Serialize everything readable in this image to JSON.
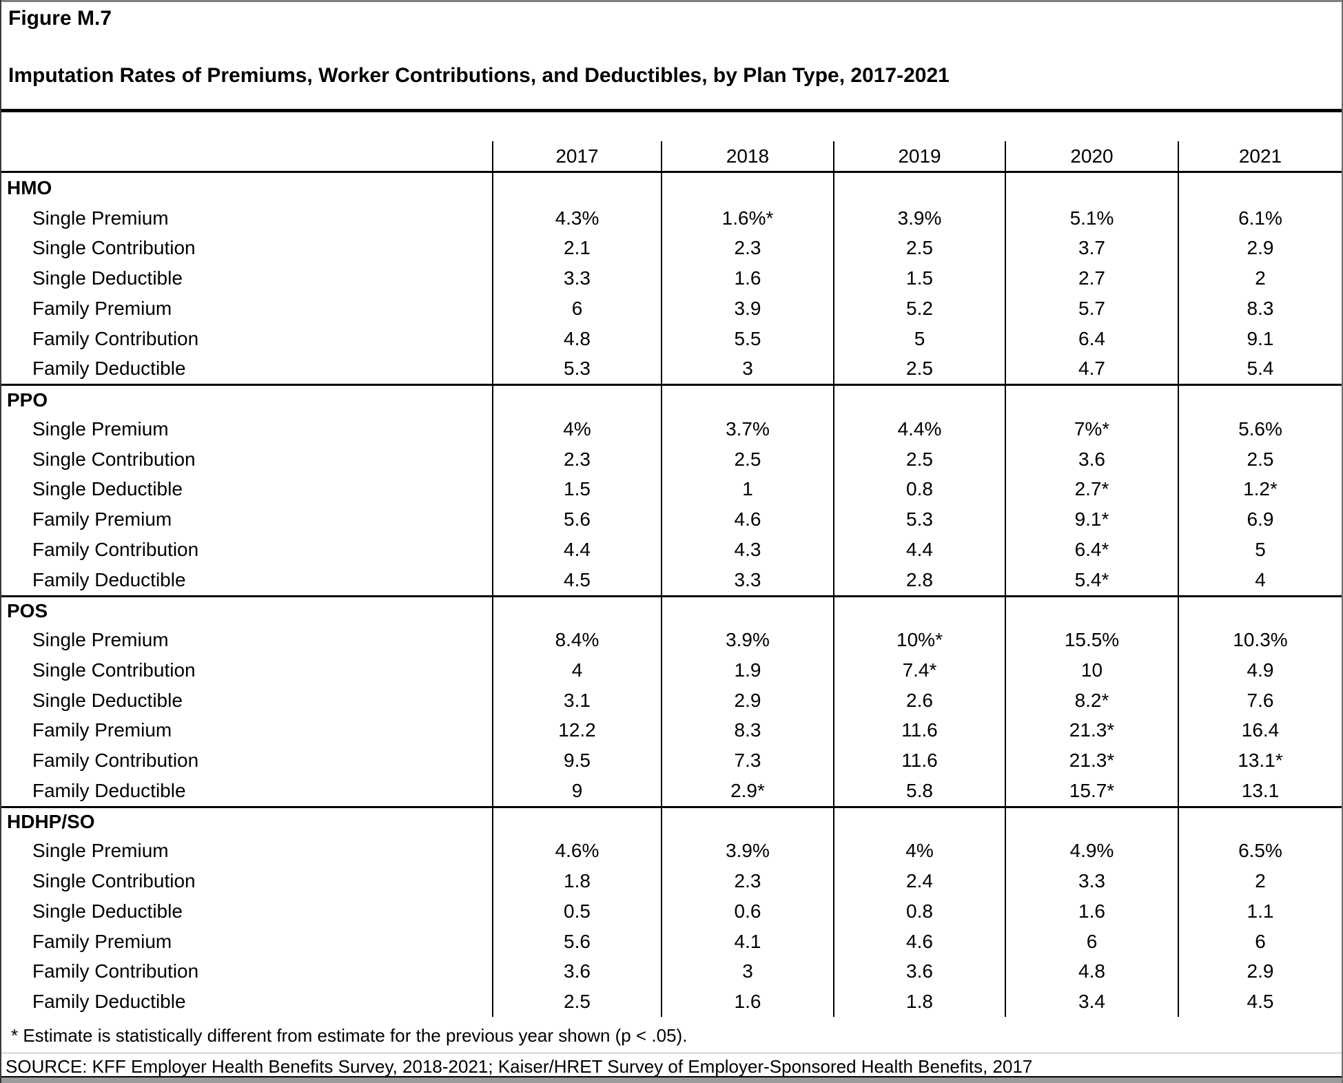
{
  "figure": {
    "label": "Figure M.7",
    "title": "Imputation Rates of Premiums, Worker Contributions, and Deductibles, by Plan Type, 2017-2021"
  },
  "table": {
    "years": [
      "2017",
      "2018",
      "2019",
      "2020",
      "2021"
    ],
    "sections": [
      {
        "name": "HMO",
        "rows": [
          {
            "label": "Single Premium",
            "values": [
              "4.3%",
              "1.6%*",
              "3.9%",
              "5.1%",
              "6.1%"
            ]
          },
          {
            "label": "Single Contribution",
            "values": [
              "2.1",
              "2.3",
              "2.5",
              "3.7",
              "2.9"
            ]
          },
          {
            "label": "Single Deductible",
            "values": [
              "3.3",
              "1.6",
              "1.5",
              "2.7",
              "2"
            ]
          },
          {
            "label": "Family Premium",
            "values": [
              "6",
              "3.9",
              "5.2",
              "5.7",
              "8.3"
            ]
          },
          {
            "label": "Family Contribution",
            "values": [
              "4.8",
              "5.5",
              "5",
              "6.4",
              "9.1"
            ]
          },
          {
            "label": "Family Deductible",
            "values": [
              "5.3",
              "3",
              "2.5",
              "4.7",
              "5.4"
            ]
          }
        ]
      },
      {
        "name": "PPO",
        "rows": [
          {
            "label": "Single Premium",
            "values": [
              "4%",
              "3.7%",
              "4.4%",
              "7%*",
              "5.6%"
            ]
          },
          {
            "label": "Single Contribution",
            "values": [
              "2.3",
              "2.5",
              "2.5",
              "3.6",
              "2.5"
            ]
          },
          {
            "label": "Single Deductible",
            "values": [
              "1.5",
              "1",
              "0.8",
              "2.7*",
              "1.2*"
            ]
          },
          {
            "label": "Family Premium",
            "values": [
              "5.6",
              "4.6",
              "5.3",
              "9.1*",
              "6.9"
            ]
          },
          {
            "label": "Family Contribution",
            "values": [
              "4.4",
              "4.3",
              "4.4",
              "6.4*",
              "5"
            ]
          },
          {
            "label": "Family Deductible",
            "values": [
              "4.5",
              "3.3",
              "2.8",
              "5.4*",
              "4"
            ]
          }
        ]
      },
      {
        "name": "POS",
        "rows": [
          {
            "label": "Single Premium",
            "values": [
              "8.4%",
              "3.9%",
              "10%*",
              "15.5%",
              "10.3%"
            ]
          },
          {
            "label": "Single Contribution",
            "values": [
              "4",
              "1.9",
              "7.4*",
              "10",
              "4.9"
            ]
          },
          {
            "label": "Single Deductible",
            "values": [
              "3.1",
              "2.9",
              "2.6",
              "8.2*",
              "7.6"
            ]
          },
          {
            "label": "Family Premium",
            "values": [
              "12.2",
              "8.3",
              "11.6",
              "21.3*",
              "16.4"
            ]
          },
          {
            "label": "Family Contribution",
            "values": [
              "9.5",
              "7.3",
              "11.6",
              "21.3*",
              "13.1*"
            ]
          },
          {
            "label": "Family Deductible",
            "values": [
              "9",
              "2.9*",
              "5.8",
              "15.7*",
              "13.1"
            ]
          }
        ]
      },
      {
        "name": "HDHP/SO",
        "rows": [
          {
            "label": "Single Premium",
            "values": [
              "4.6%",
              "3.9%",
              "4%",
              "4.9%",
              "6.5%"
            ]
          },
          {
            "label": "Single Contribution",
            "values": [
              "1.8",
              "2.3",
              "2.4",
              "3.3",
              "2"
            ]
          },
          {
            "label": "Single Deductible",
            "values": [
              "0.5",
              "0.6",
              "0.8",
              "1.6",
              "1.1"
            ]
          },
          {
            "label": "Family Premium",
            "values": [
              "5.6",
              "4.1",
              "4.6",
              "6",
              "6"
            ]
          },
          {
            "label": "Family Contribution",
            "values": [
              "3.6",
              "3",
              "3.6",
              "4.8",
              "2.9"
            ]
          },
          {
            "label": "Family Deductible",
            "values": [
              "2.5",
              "1.6",
              "1.8",
              "3.4",
              "4.5"
            ]
          }
        ]
      }
    ]
  },
  "notes": {
    "footnote": "* Estimate is statistically different from estimate for the previous year shown (p < .05).",
    "source": "SOURCE: KFF Employer Health Benefits Survey, 2018-2021; Kaiser/HRET Survey of Employer-Sponsored Health Benefits, 2017"
  },
  "colors": {
    "text": "#000000",
    "rule": "#000000",
    "page_bg": "#ffffff",
    "edge_gray": "#7f7f7f",
    "note_rule_gray": "#b3b3b3"
  }
}
